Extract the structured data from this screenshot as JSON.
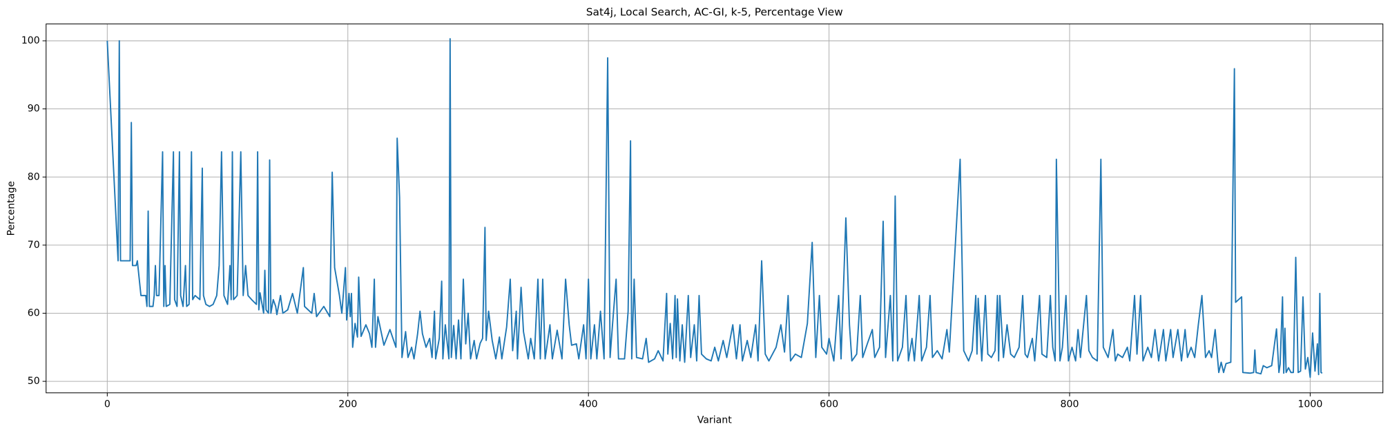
{
  "chart_data": {
    "type": "line",
    "title": "Sat4j, Local Search, AC-GI, k-5, Percentage View",
    "x_label": "Variant",
    "y_label": "Percentage",
    "x": [
      0,
      9,
      10,
      11,
      19,
      20,
      21,
      24,
      25,
      28,
      32,
      33,
      34,
      35,
      38,
      39,
      40,
      41,
      43,
      46,
      47,
      48,
      49,
      52,
      55,
      56,
      58,
      60,
      61,
      63,
      65,
      66,
      68,
      70,
      71,
      73,
      77,
      79,
      80,
      82,
      85,
      88,
      91,
      93,
      95,
      97,
      100,
      102,
      103,
      104,
      105,
      108,
      111,
      113,
      115,
      117,
      120,
      124,
      125,
      126,
      127,
      130,
      131,
      132,
      134,
      135,
      136,
      138,
      140,
      141,
      144,
      146,
      150,
      154,
      158,
      163,
      164,
      170,
      172,
      174,
      180,
      185,
      187,
      189,
      193,
      195,
      198,
      199,
      201,
      202,
      203,
      204,
      206,
      208,
      209,
      211,
      215,
      218,
      220,
      222,
      223,
      225,
      230,
      235,
      240,
      241,
      243,
      245,
      248,
      250,
      253,
      255,
      258,
      260,
      262,
      265,
      268,
      270,
      272,
      273,
      276,
      278,
      279,
      281,
      284,
      285,
      286,
      288,
      290,
      292,
      294,
      296,
      298,
      300,
      302,
      305,
      307,
      310,
      312,
      314,
      315,
      317,
      320,
      323,
      326,
      328,
      332,
      335,
      337,
      340,
      341,
      344,
      346,
      350,
      352,
      355,
      358,
      360,
      362,
      364,
      368,
      370,
      374,
      378,
      381,
      384,
      386,
      390,
      392,
      396,
      398,
      400,
      402,
      405,
      407,
      410,
      413,
      416,
      418,
      420,
      423,
      425,
      430,
      433,
      435,
      436,
      438,
      440,
      445,
      448,
      450,
      455,
      458,
      462,
      465,
      466,
      468,
      470,
      472,
      473,
      474,
      476,
      478,
      480,
      483,
      485,
      488,
      490,
      492,
      494,
      498,
      502,
      505,
      508,
      512,
      515,
      520,
      523,
      526,
      528,
      532,
      535,
      539,
      541,
      544,
      547,
      550,
      556,
      560,
      563,
      566,
      568,
      572,
      577,
      582,
      586,
      589,
      592,
      594,
      598,
      600,
      604,
      608,
      610,
      614,
      617,
      619,
      623,
      626,
      628,
      632,
      636,
      638,
      642,
      645,
      647,
      651,
      653,
      655,
      657,
      661,
      664,
      666,
      669,
      671,
      675,
      677,
      681,
      684,
      686,
      690,
      694,
      698,
      700,
      709,
      712,
      716,
      719,
      722,
      723,
      724,
      727,
      730,
      732,
      735,
      738,
      740,
      741,
      742,
      745,
      748,
      751,
      754,
      758,
      761,
      763,
      765,
      769,
      771,
      775,
      777,
      781,
      784,
      786,
      788,
      789,
      792,
      794,
      797,
      799,
      802,
      805,
      807,
      809,
      814,
      816,
      819,
      823,
      826,
      828,
      832,
      836,
      838,
      840,
      844,
      848,
      850,
      854,
      856,
      859,
      861,
      865,
      868,
      871,
      874,
      878,
      880,
      884,
      886,
      890,
      893,
      896,
      898,
      901,
      904,
      907,
      910,
      913,
      916,
      918,
      921,
      924,
      926,
      928,
      930,
      934,
      937,
      938,
      943,
      944,
      950,
      953,
      954,
      955,
      959,
      961,
      964,
      968,
      970,
      972,
      974,
      975,
      977,
      978,
      979,
      980,
      982,
      984,
      986,
      988,
      990,
      992,
      994,
      996,
      998,
      1000,
      1002,
      1004,
      1006,
      1007,
      1008,
      1009,
      1010
    ],
    "series": [
      {
        "name": "Percentage",
        "color": "#1f77b4",
        "values": [
          100,
          67.7,
          100,
          67.7,
          67.7,
          88,
          67,
          67,
          67.7,
          62.6,
          62.6,
          61,
          75,
          61,
          61,
          62.6,
          67,
          62.6,
          62.6,
          83.7,
          61,
          67,
          61,
          61.3,
          83.7,
          62,
          61,
          83.7,
          62.6,
          61,
          67,
          61,
          61.3,
          83.7,
          62,
          62.6,
          62,
          81.3,
          62.6,
          61.3,
          61,
          61.3,
          62.6,
          67,
          83.7,
          62.6,
          61.3,
          67,
          62,
          83.7,
          62,
          62.6,
          83.7,
          62.6,
          67,
          62.6,
          62,
          61.3,
          83.7,
          60.5,
          63,
          60,
          66.3,
          60.5,
          60,
          82.5,
          60,
          62,
          61,
          59.8,
          62.6,
          60,
          60.5,
          62.9,
          60,
          66.7,
          61,
          60,
          62.9,
          59.5,
          61,
          59.5,
          80.7,
          66.7,
          62.6,
          60,
          66.7,
          59,
          62.9,
          59.5,
          62.9,
          55,
          58.5,
          56.5,
          65.3,
          56.6,
          58.3,
          57,
          55,
          65,
          55,
          59.5,
          55.3,
          57.6,
          55,
          85.7,
          77,
          53.5,
          57.3,
          53.5,
          55,
          53.3,
          57,
          60.3,
          57,
          55,
          56.3,
          53.5,
          60.3,
          53.3,
          56.3,
          64.7,
          53.3,
          58.3,
          53.3,
          100.3,
          53.5,
          58.2,
          53.3,
          59,
          53.3,
          65,
          55.5,
          60,
          53.3,
          56,
          53.3,
          55.6,
          56.3,
          72.6,
          56,
          60.3,
          56,
          53.3,
          56.5,
          53.3,
          58,
          65,
          54.5,
          60.3,
          53.3,
          63.8,
          57.3,
          53.3,
          56.3,
          53.3,
          65,
          53.3,
          65,
          53.3,
          58.3,
          53.3,
          57.5,
          53.3,
          65,
          58.3,
          55.3,
          55.5,
          53.3,
          58.3,
          53.3,
          65,
          53.3,
          58.3,
          53.3,
          60.3,
          53.3,
          97.5,
          53.5,
          58.3,
          65,
          53.3,
          53.3,
          60.3,
          85.3,
          53.3,
          65,
          53.5,
          53.3,
          56.3,
          52.8,
          53.3,
          54.5,
          53,
          62.9,
          54,
          58.5,
          53.3,
          62.6,
          53.5,
          62.1,
          53,
          58.3,
          52.8,
          62.6,
          53.5,
          58.3,
          53,
          62.6,
          54,
          53.3,
          53,
          55,
          53,
          56,
          53.5,
          58.3,
          53.3,
          58.3,
          53,
          56,
          53.5,
          58.3,
          53,
          67.7,
          54,
          53,
          55,
          58.3,
          54.3,
          62.6,
          53,
          54,
          53.5,
          58.5,
          70.4,
          53.5,
          62.6,
          55,
          54,
          56.3,
          53,
          62.6,
          53.3,
          74,
          58.3,
          53,
          54,
          62.6,
          53.5,
          55.6,
          57.6,
          53.5,
          55,
          73.5,
          53.5,
          62.6,
          53,
          77.2,
          53,
          55,
          62.6,
          53,
          56.3,
          53,
          62.6,
          53,
          55,
          62.6,
          53.5,
          54.5,
          53.3,
          57.6,
          54.3,
          82.6,
          54.5,
          53,
          54.5,
          62.6,
          54,
          62.2,
          53,
          62.6,
          54,
          53.5,
          54.5,
          62.6,
          53,
          62.6,
          53.5,
          58.3,
          54,
          53.5,
          55,
          62.6,
          54,
          53.5,
          56.3,
          53,
          62.6,
          54,
          53.5,
          62.6,
          55,
          53,
          82.6,
          53,
          55,
          62.6,
          53,
          55,
          53,
          57.6,
          53.5,
          62.6,
          54.5,
          53.5,
          53,
          82.6,
          55,
          53.5,
          57.6,
          53,
          54,
          53.5,
          55,
          53,
          62.6,
          54,
          62.6,
          53,
          55,
          53.5,
          57.6,
          53,
          57.6,
          53,
          57.6,
          53.5,
          57.6,
          53,
          57.6,
          53.5,
          55,
          53.5,
          58.3,
          62.6,
          53.5,
          54.5,
          53.5,
          57.6,
          51.3,
          52.8,
          51.3,
          52.6,
          52.8,
          95.9,
          61.6,
          62.4,
          51.3,
          51.2,
          51.3,
          54.6,
          51.3,
          51.1,
          52.3,
          52,
          52.3,
          55,
          57.7,
          51.3,
          52.5,
          62.4,
          51.2,
          57.8,
          51.3,
          52,
          51.3,
          51.3,
          68.2,
          51.3,
          51.5,
          62.4,
          51.8,
          53.5,
          50.6,
          57.1,
          51.5,
          55.5,
          51,
          62.9,
          51.3,
          51.2
        ]
      }
    ],
    "xlim": [
      -50.85,
      1060.45
    ],
    "ylim": [
      48.31,
      102.47
    ],
    "xticks": [
      0,
      200,
      400,
      600,
      800,
      1000
    ],
    "yticks": [
      50,
      60,
      70,
      80,
      90,
      100
    ],
    "grid": true
  }
}
